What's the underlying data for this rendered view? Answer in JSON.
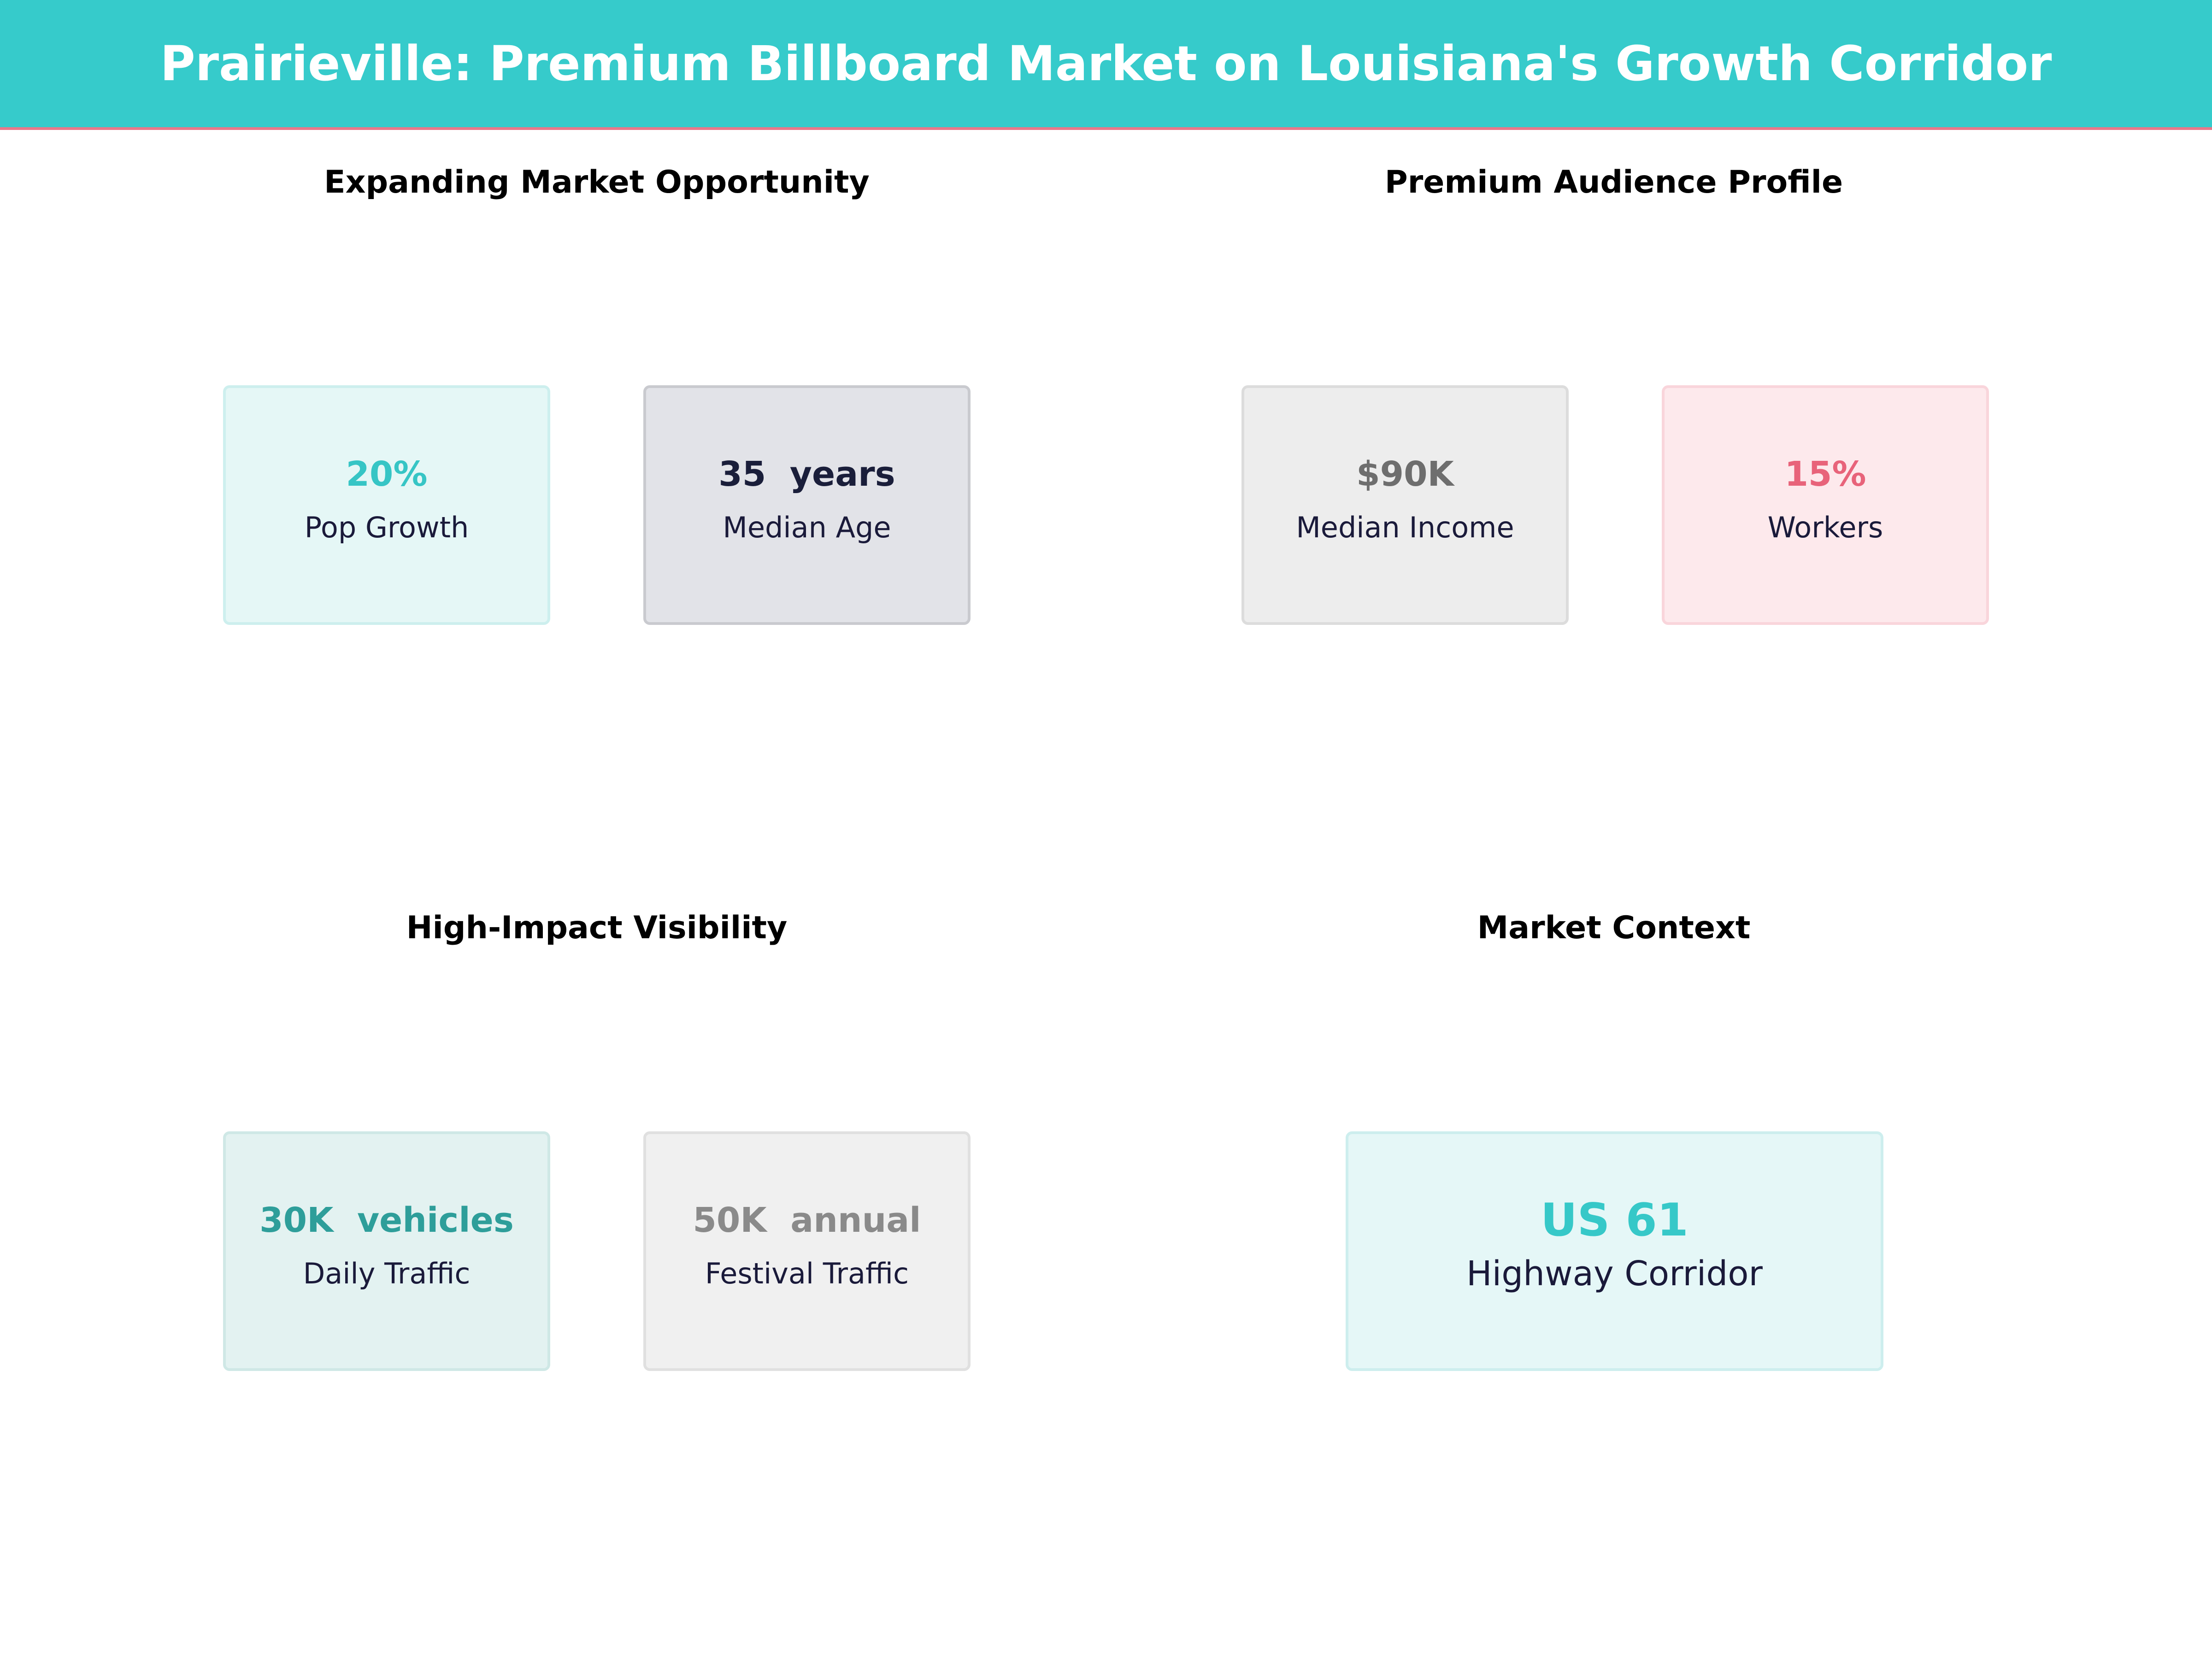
{
  "header": {
    "title": "Prairieville: Premium Billboard Market on Louisiana's Growth Corridor"
  },
  "panels": [
    {
      "title": "Expanding Market Opportunity",
      "cards": [
        {
          "value": "20%",
          "label": "Pop Growth"
        },
        {
          "value": "35  years",
          "label": "Median Age"
        }
      ]
    },
    {
      "title": "Premium Audience Profile",
      "cards": [
        {
          "value": "$90K",
          "label": "Median Income"
        },
        {
          "value": "15%",
          "label": "Workers"
        }
      ]
    },
    {
      "title": "High-Impact Visibility",
      "cards": [
        {
          "value": "30K  vehicles",
          "label": "Daily Traffic"
        },
        {
          "value": "50K  annual",
          "label": "Festival Traffic"
        }
      ]
    },
    {
      "title": "Market Context",
      "cards": [
        {
          "value": "US 61",
          "label": "Highway Corridor"
        }
      ]
    }
  ]
}
